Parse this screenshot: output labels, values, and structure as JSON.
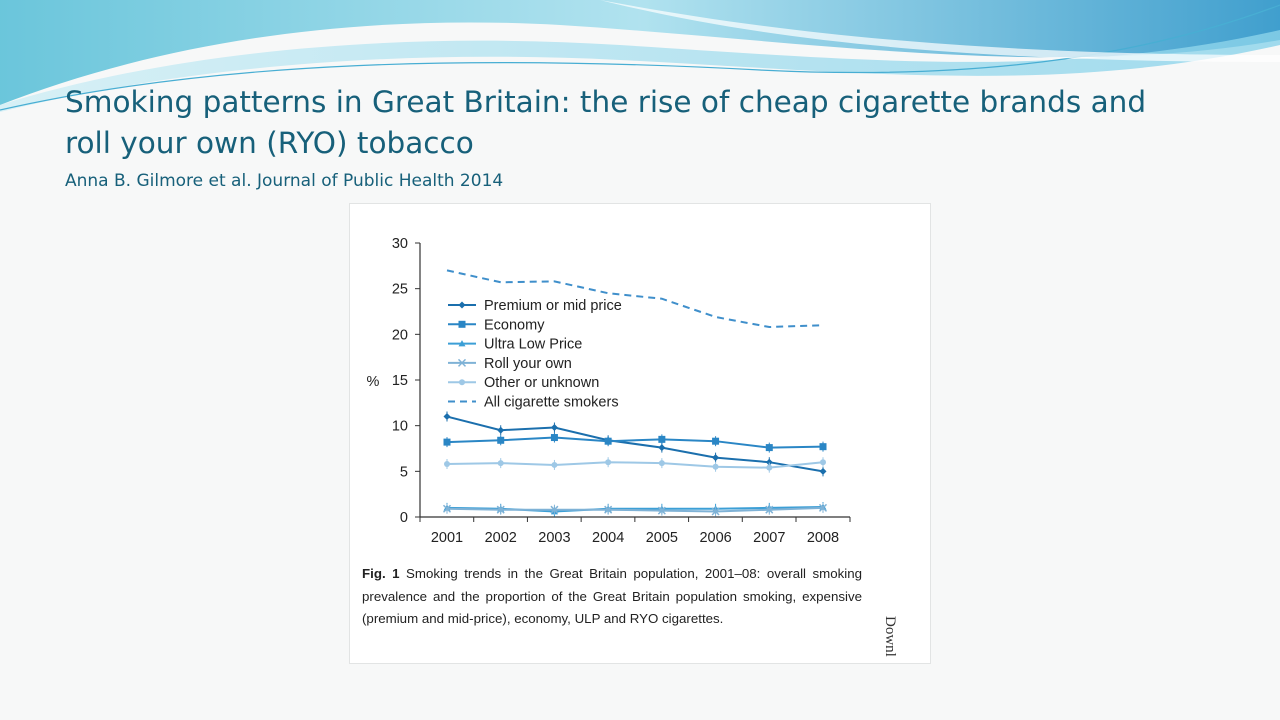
{
  "slide": {
    "title": "Smoking patterns in Great Britain: the rise of cheap cigarette brands and roll your own (RYO) tobacco",
    "subtitle": "Anna B. Gilmore et al. Journal of Public Health 2014"
  },
  "figure": {
    "caption_label": "Fig. 1",
    "caption_text": "Smoking trends in the Great Britain population, 2001–08: overall smoking prevalence and the proportion of the Great Britain population smoking, expensive (premium and mid-price), economy, ULP and RYO cigarettes.",
    "side_text": "Downl"
  },
  "chart_data": {
    "type": "line",
    "ylabel": "%",
    "xlabel": "",
    "ylim": [
      0,
      30
    ],
    "yticks": [
      0,
      5,
      10,
      15,
      20,
      25,
      30
    ],
    "x": [
      2001,
      2002,
      2003,
      2004,
      2005,
      2006,
      2007,
      2008
    ],
    "legend_position": "top-left",
    "series": [
      {
        "name": "Premium or mid price",
        "marker": "diamond",
        "color": "#1b6fad",
        "values": [
          11.0,
          9.5,
          9.8,
          8.4,
          7.6,
          6.5,
          6.0,
          5.0
        ]
      },
      {
        "name": "Economy",
        "marker": "square",
        "color": "#2a86c5",
        "values": [
          8.2,
          8.4,
          8.7,
          8.3,
          8.5,
          8.3,
          7.6,
          7.7
        ]
      },
      {
        "name": "Ultra Low Price",
        "marker": "triangle",
        "color": "#3c9fd6",
        "values": [
          1.0,
          0.9,
          0.6,
          0.9,
          0.9,
          0.9,
          1.0,
          1.1
        ]
      },
      {
        "name": "Roll your own",
        "marker": "x",
        "color": "#7fb2d6",
        "values": [
          0.9,
          0.8,
          0.8,
          0.8,
          0.7,
          0.6,
          0.8,
          1.0
        ]
      },
      {
        "name": "Other or unknown",
        "marker": "circle",
        "color": "#9ec8e6",
        "values": [
          5.8,
          5.9,
          5.7,
          6.0,
          5.9,
          5.5,
          5.4,
          6.0
        ]
      },
      {
        "name": "All cigarette smokers",
        "marker": "none",
        "dashed": true,
        "color": "#3f8fcb",
        "values": [
          27.0,
          25.7,
          25.8,
          24.5,
          23.9,
          21.9,
          20.8,
          21.0
        ]
      }
    ]
  }
}
